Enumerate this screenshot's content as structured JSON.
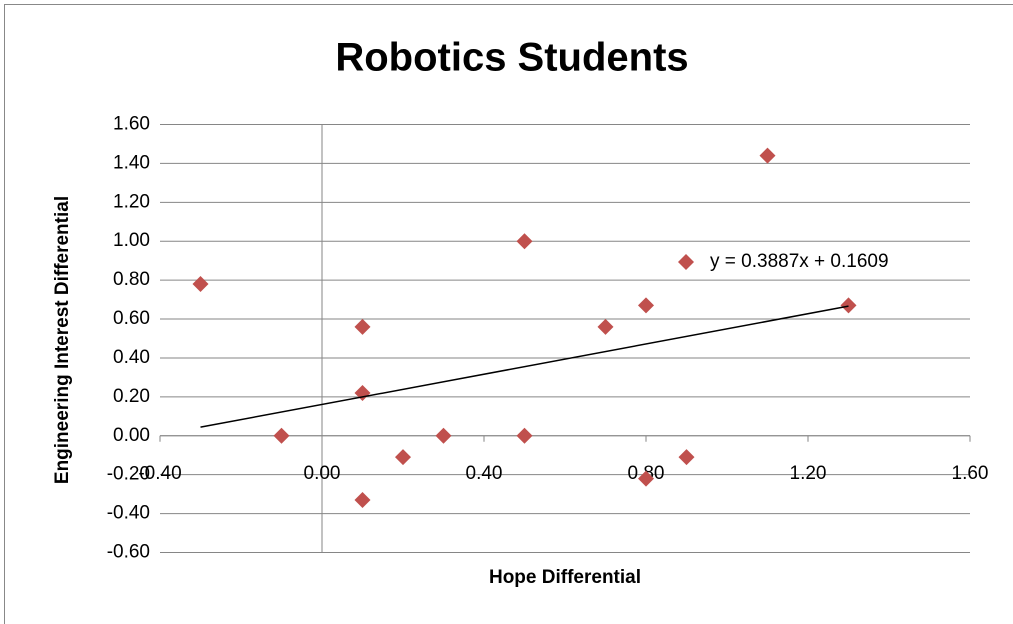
{
  "chart_data": {
    "type": "scatter",
    "title": "Robotics Students",
    "x_label": "Hope Differential",
    "y_label": "Engineering Interest Differential",
    "series": [
      {
        "name": "y = 0.3887x + 0.1609",
        "color": "#c0504d",
        "x": [
          -0.3,
          -0.1,
          0.1,
          0.1,
          0.1,
          0.2,
          0.3,
          0.5,
          0.5,
          0.7,
          0.8,
          0.8,
          0.9,
          1.1,
          1.3
        ],
        "values": [
          0.78,
          0,
          0.56,
          0.22,
          -0.33,
          -0.11,
          0,
          1.0,
          0,
          0.56,
          0.67,
          -0.22,
          -0.11,
          1.44,
          0.67
        ]
      }
    ],
    "trendline": {
      "slope": 0.3887,
      "intercept": 0.1609,
      "color": "#000000"
    },
    "xlim": [
      -0.4,
      1.6
    ],
    "xticks": [
      {
        "value": -0.4,
        "label": "-0.40"
      },
      {
        "value": 0,
        "label": "0.00"
      },
      {
        "value": 0.4,
        "label": "0.40"
      },
      {
        "value": 0.8,
        "label": "0.80"
      },
      {
        "value": 1.2,
        "label": "1.20"
      },
      {
        "value": 1.6,
        "label": "1.60"
      }
    ],
    "ylim": [
      -0.6,
      1.6
    ],
    "yticks": [
      {
        "value": -0.6,
        "label": "-0.60"
      },
      {
        "value": -0.4,
        "label": "-0.40"
      },
      {
        "value": -0.2,
        "label": "-0.20"
      },
      {
        "value": 0,
        "label": "0.00"
      },
      {
        "value": 0.2,
        "label": "0.20"
      },
      {
        "value": 0.4,
        "label": "0.40"
      },
      {
        "value": 0.6,
        "label": "0.60"
      },
      {
        "value": 0.8,
        "label": "0.80"
      },
      {
        "value": 1.0,
        "label": "1.00"
      },
      {
        "value": 1.2,
        "label": "1.20"
      },
      {
        "value": 1.4,
        "label": "1.40"
      },
      {
        "value": 1.6,
        "label": "1.60"
      }
    ],
    "grid": true
  }
}
